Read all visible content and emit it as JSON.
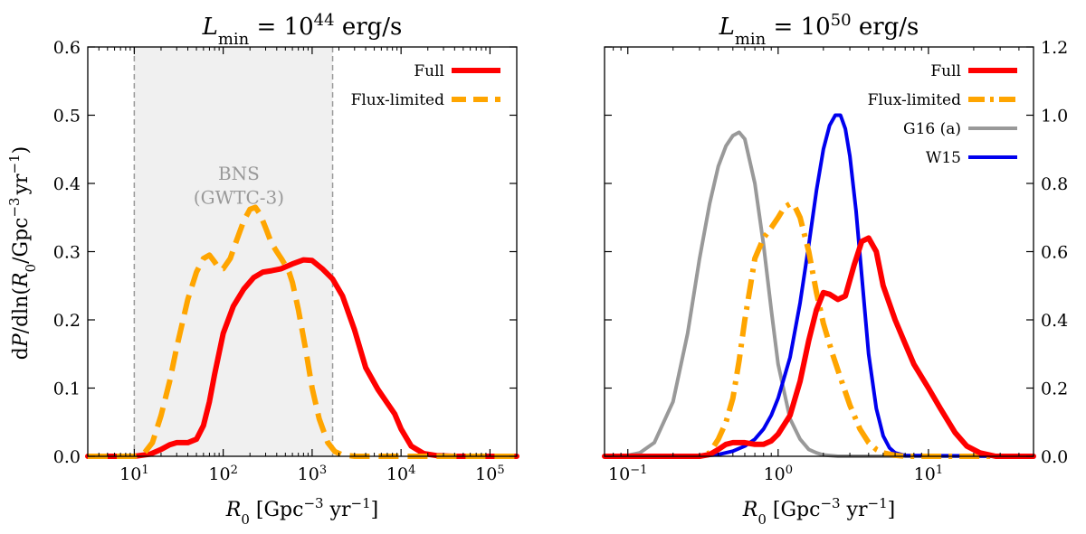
{
  "chart_data": [
    {
      "type": "line",
      "title": "L_min = 10^44 erg/s",
      "title_parts": {
        "var": "L",
        "sub": "min",
        "eq": " = 10",
        "exp": "44",
        "unit": " erg/s"
      },
      "xlabel": "R_0 [Gpc^-3 yr^-1]",
      "xlabel_parts": {
        "var": "R",
        "sub": "0",
        "unit_a": " [Gpc",
        "exp_a": "−3",
        "unit_b": " yr",
        "exp_b": "−1",
        "close": "]"
      },
      "ylabel": "dP/dln(R_0/Gpc^-3 yr^-1)",
      "ylabel_parts": {
        "a": "d",
        "b": "P",
        "c": "/dln(",
        "d": "R",
        "e": "0",
        "f": "/Gpc",
        "g": "−3",
        "h": "yr",
        "i": "−1",
        "j": ")"
      },
      "xscale": "log",
      "xlim": [
        3,
        200000
      ],
      "ylim": [
        0,
        0.6
      ],
      "x_ticks": [
        {
          "v": 10,
          "base": "10",
          "exp": "1"
        },
        {
          "v": 100,
          "base": "10",
          "exp": "2"
        },
        {
          "v": 1000,
          "base": "10",
          "exp": "3"
        },
        {
          "v": 10000,
          "base": "10",
          "exp": "4"
        },
        {
          "v": 100000,
          "base": "10",
          "exp": "5"
        }
      ],
      "y_ticks": [
        {
          "v": 0.0,
          "label": "0.0"
        },
        {
          "v": 0.1,
          "label": "0.1"
        },
        {
          "v": 0.2,
          "label": "0.2"
        },
        {
          "v": 0.3,
          "label": "0.3"
        },
        {
          "v": 0.4,
          "label": "0.4"
        },
        {
          "v": 0.5,
          "label": "0.5"
        },
        {
          "v": 0.6,
          "label": "0.6"
        }
      ],
      "y_axis_side": "left",
      "shaded_band": {
        "x0": 10,
        "x1": 1700,
        "color": "#f0f0f0",
        "label_line1": "BNS",
        "label_line2": "(GWTC-3)",
        "label_x": 150,
        "label_y1": 0.405,
        "label_y2": 0.37
      },
      "legend_position": "top-right",
      "series": [
        {
          "name": "Full",
          "color": "#ff0000",
          "dash": "solid",
          "x": [
            3,
            10,
            15,
            20,
            25,
            30,
            40,
            50,
            60,
            70,
            80,
            100,
            130,
            170,
            220,
            280,
            350,
            450,
            600,
            800,
            1000,
            1300,
            1700,
            2200,
            3000,
            4000,
            5500,
            7000,
            8500,
            10000,
            13000,
            18000,
            25000,
            40000,
            200000
          ],
          "y": [
            0.0,
            0.0,
            0.003,
            0.01,
            0.017,
            0.02,
            0.02,
            0.025,
            0.045,
            0.08,
            0.12,
            0.18,
            0.22,
            0.245,
            0.262,
            0.27,
            0.272,
            0.275,
            0.282,
            0.288,
            0.287,
            0.275,
            0.26,
            0.235,
            0.185,
            0.13,
            0.098,
            0.078,
            0.062,
            0.04,
            0.015,
            0.004,
            0.001,
            0.0,
            0.0
          ]
        },
        {
          "name": "Flux-limited",
          "color": "#ffa500",
          "dash": "dash",
          "x": [
            3,
            10,
            13,
            16,
            20,
            25,
            30,
            40,
            50,
            60,
            70,
            80,
            90,
            100,
            120,
            140,
            170,
            200,
            230,
            260,
            300,
            350,
            400,
            450,
            500,
            550,
            600,
            700,
            850,
            1000,
            1200,
            1500,
            1800,
            2200,
            3000,
            4000,
            5000,
            200000
          ],
          "y": [
            0.0,
            0.0,
            0.005,
            0.02,
            0.06,
            0.11,
            0.16,
            0.23,
            0.27,
            0.29,
            0.295,
            0.285,
            0.275,
            0.275,
            0.29,
            0.315,
            0.345,
            0.362,
            0.365,
            0.355,
            0.335,
            0.312,
            0.3,
            0.29,
            0.28,
            0.27,
            0.255,
            0.215,
            0.155,
            0.1,
            0.055,
            0.02,
            0.007,
            0.002,
            0.0,
            0.0,
            0.0,
            0.0
          ]
        }
      ]
    },
    {
      "type": "line",
      "title": "L_min = 10^50 erg/s",
      "title_parts": {
        "var": "L",
        "sub": "min",
        "eq": " = 10",
        "exp": "50",
        "unit": " erg/s"
      },
      "xlabel": "R_0 [Gpc^-3 yr^-1]",
      "xlabel_parts": {
        "var": "R",
        "sub": "0",
        "unit_a": " [Gpc",
        "exp_a": "−3",
        "unit_b": " yr",
        "exp_b": "−1",
        "close": "]"
      },
      "xscale": "log",
      "xlim": [
        0.07,
        50
      ],
      "ylim": [
        0,
        1.2
      ],
      "x_ticks": [
        {
          "v": 0.1,
          "base": "10",
          "exp": "−1"
        },
        {
          "v": 1,
          "base": "10",
          "exp": "0"
        },
        {
          "v": 10,
          "base": "10",
          "exp": "1"
        }
      ],
      "y_ticks": [
        {
          "v": 0.0,
          "label": "0.0"
        },
        {
          "v": 0.2,
          "label": "0.2"
        },
        {
          "v": 0.4,
          "label": "0.4"
        },
        {
          "v": 0.6,
          "label": "0.6"
        },
        {
          "v": 0.8,
          "label": "0.8"
        },
        {
          "v": 1.0,
          "label": "1.0"
        },
        {
          "v": 1.2,
          "label": "1.2"
        }
      ],
      "y_axis_side": "right",
      "legend_position": "top-right",
      "series": [
        {
          "name": "Full",
          "color": "#ff0000",
          "dash": "solid",
          "x": [
            0.07,
            0.3,
            0.35,
            0.4,
            0.45,
            0.5,
            0.6,
            0.7,
            0.8,
            0.9,
            1.0,
            1.2,
            1.4,
            1.6,
            1.8,
            2.0,
            2.2,
            2.5,
            2.8,
            3.2,
            3.6,
            4.0,
            4.5,
            5.0,
            6.0,
            7.0,
            8.0,
            10,
            12,
            15,
            18,
            22,
            28,
            50
          ],
          "y": [
            0.0,
            0.0,
            0.005,
            0.02,
            0.035,
            0.04,
            0.04,
            0.035,
            0.035,
            0.045,
            0.065,
            0.12,
            0.22,
            0.34,
            0.43,
            0.48,
            0.475,
            0.46,
            0.47,
            0.56,
            0.63,
            0.64,
            0.6,
            0.5,
            0.4,
            0.33,
            0.27,
            0.2,
            0.14,
            0.07,
            0.03,
            0.01,
            0.0,
            0.0
          ]
        },
        {
          "name": "Flux-limited",
          "color": "#ffa500",
          "dash": "dashdot",
          "x": [
            0.07,
            0.3,
            0.35,
            0.4,
            0.45,
            0.5,
            0.55,
            0.6,
            0.7,
            0.8,
            0.9,
            1.0,
            1.1,
            1.2,
            1.3,
            1.4,
            1.6,
            1.8,
            2.0,
            2.3,
            2.6,
            3.0,
            3.5,
            4.0,
            4.5,
            5.0,
            6.0,
            7.0,
            50
          ],
          "y": [
            0.0,
            0.0,
            0.01,
            0.05,
            0.1,
            0.17,
            0.28,
            0.4,
            0.58,
            0.64,
            0.67,
            0.7,
            0.73,
            0.74,
            0.73,
            0.7,
            0.6,
            0.48,
            0.39,
            0.3,
            0.23,
            0.15,
            0.08,
            0.04,
            0.02,
            0.01,
            0.003,
            0.0,
            0.0
          ]
        },
        {
          "name": "G16 (a)",
          "color": "#999999",
          "dash": "solid",
          "x": [
            0.07,
            0.1,
            0.12,
            0.15,
            0.2,
            0.25,
            0.3,
            0.35,
            0.4,
            0.45,
            0.5,
            0.55,
            0.6,
            0.7,
            0.8,
            0.9,
            1.0,
            1.2,
            1.4,
            1.6,
            1.8,
            2.0,
            2.5,
            50
          ],
          "y": [
            0.0,
            0.003,
            0.01,
            0.04,
            0.16,
            0.36,
            0.58,
            0.74,
            0.85,
            0.91,
            0.94,
            0.95,
            0.93,
            0.8,
            0.62,
            0.43,
            0.27,
            0.11,
            0.05,
            0.02,
            0.01,
            0.004,
            0.0,
            0.0
          ]
        },
        {
          "name": "W15",
          "color": "#0000ee",
          "dash": "solid",
          "x": [
            0.07,
            0.3,
            0.4,
            0.5,
            0.6,
            0.7,
            0.8,
            0.9,
            1.0,
            1.2,
            1.4,
            1.6,
            1.8,
            2.0,
            2.2,
            2.4,
            2.6,
            2.8,
            3.0,
            3.3,
            3.6,
            4.0,
            4.5,
            5.0,
            5.5,
            6.0,
            7.0,
            50
          ],
          "y": [
            0.0,
            0.0,
            0.005,
            0.015,
            0.03,
            0.05,
            0.08,
            0.12,
            0.17,
            0.29,
            0.45,
            0.62,
            0.78,
            0.9,
            0.97,
            1.0,
            1.0,
            0.96,
            0.88,
            0.72,
            0.53,
            0.3,
            0.14,
            0.06,
            0.025,
            0.01,
            0.002,
            0.0
          ]
        }
      ]
    }
  ]
}
